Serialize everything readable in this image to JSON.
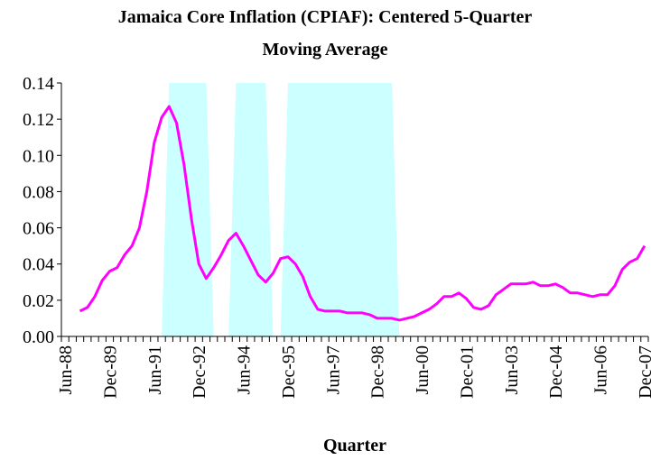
{
  "chart_data": {
    "type": "line",
    "title": [
      "Jamaica Core Inflation (CPIAF): Centered 5-Quarter",
      "Moving Average"
    ],
    "x_label": "Quarter",
    "categories": [
      "Jun-88",
      null,
      null,
      null,
      null,
      null,
      "Dec-89",
      null,
      null,
      null,
      null,
      null,
      "Jun-91",
      null,
      null,
      null,
      null,
      null,
      "Dec-92",
      null,
      null,
      null,
      null,
      null,
      "Jun-94",
      null,
      null,
      null,
      null,
      null,
      "Dec-95",
      null,
      null,
      null,
      null,
      null,
      "Jun-97",
      null,
      null,
      null,
      null,
      null,
      "Dec-98",
      null,
      null,
      null,
      null,
      null,
      "Jun-00",
      null,
      null,
      null,
      null,
      null,
      "Dec-01",
      null,
      null,
      null,
      null,
      null,
      "Jun-03",
      null,
      null,
      null,
      null,
      null,
      "Dec-04",
      null,
      null,
      null,
      null,
      null,
      "Jun-06",
      null,
      null,
      null,
      null,
      null,
      "Dec-07"
    ],
    "series": [
      {
        "type": "area",
        "color": "#ccffff",
        "values": [
          0,
          0,
          0,
          0,
          0,
          0,
          0,
          0,
          0,
          0,
          0,
          0,
          0,
          0,
          0.14,
          0.14,
          0.14,
          0.14,
          0.14,
          0.14,
          0,
          0,
          0,
          0.14,
          0.14,
          0.14,
          0.14,
          0.14,
          0,
          0,
          0.14,
          0.14,
          0.14,
          0.14,
          0.14,
          0.14,
          0.14,
          0.14,
          0.14,
          0.14,
          0.14,
          0.14,
          0.14,
          0.14,
          0.14,
          0,
          0,
          0,
          0,
          0,
          0,
          0,
          0,
          0,
          0,
          0,
          0,
          0,
          0,
          0,
          0,
          0,
          0,
          0,
          0,
          0,
          0,
          0,
          0,
          0,
          0,
          0,
          0,
          0,
          0,
          0,
          0,
          0,
          0
        ]
      },
      {
        "type": "line",
        "color": "#ff00ff",
        "values": [
          null,
          null,
          0.014,
          0.016,
          0.022,
          0.031,
          0.036,
          0.038,
          0.045,
          0.05,
          0.06,
          0.08,
          0.107,
          0.121,
          0.127,
          0.118,
          0.095,
          0.065,
          0.04,
          0.032,
          0.038,
          0.045,
          0.053,
          0.057,
          0.05,
          0.042,
          0.034,
          0.03,
          0.035,
          0.043,
          0.044,
          0.04,
          0.033,
          0.022,
          0.015,
          0.014,
          0.014,
          0.014,
          0.013,
          0.013,
          0.013,
          0.012,
          0.01,
          0.01,
          0.01,
          0.009,
          0.01,
          0.011,
          0.013,
          0.015,
          0.018,
          0.022,
          0.022,
          0.024,
          0.021,
          0.016,
          0.015,
          0.017,
          0.023,
          0.026,
          0.029,
          0.029,
          0.029,
          0.03,
          0.028,
          0.028,
          0.029,
          0.027,
          0.024,
          0.024,
          0.023,
          0.022,
          0.023,
          0.023,
          0.028,
          0.037,
          0.041,
          0.043,
          0.05
        ]
      }
    ],
    "ylim": [
      0,
      0.14
    ],
    "yticks": [
      {
        "value": 0,
        "label": "0.00"
      },
      {
        "value": 0.02,
        "label": "0.02"
      },
      {
        "value": 0.04,
        "label": "0.04"
      },
      {
        "value": 0.06,
        "label": "0.06"
      },
      {
        "value": 0.08,
        "label": "0.08"
      },
      {
        "value": 0.1,
        "label": "0.10"
      },
      {
        "value": 0.12,
        "label": "0.12"
      },
      {
        "value": 0.14,
        "label": "0.14"
      }
    ]
  }
}
